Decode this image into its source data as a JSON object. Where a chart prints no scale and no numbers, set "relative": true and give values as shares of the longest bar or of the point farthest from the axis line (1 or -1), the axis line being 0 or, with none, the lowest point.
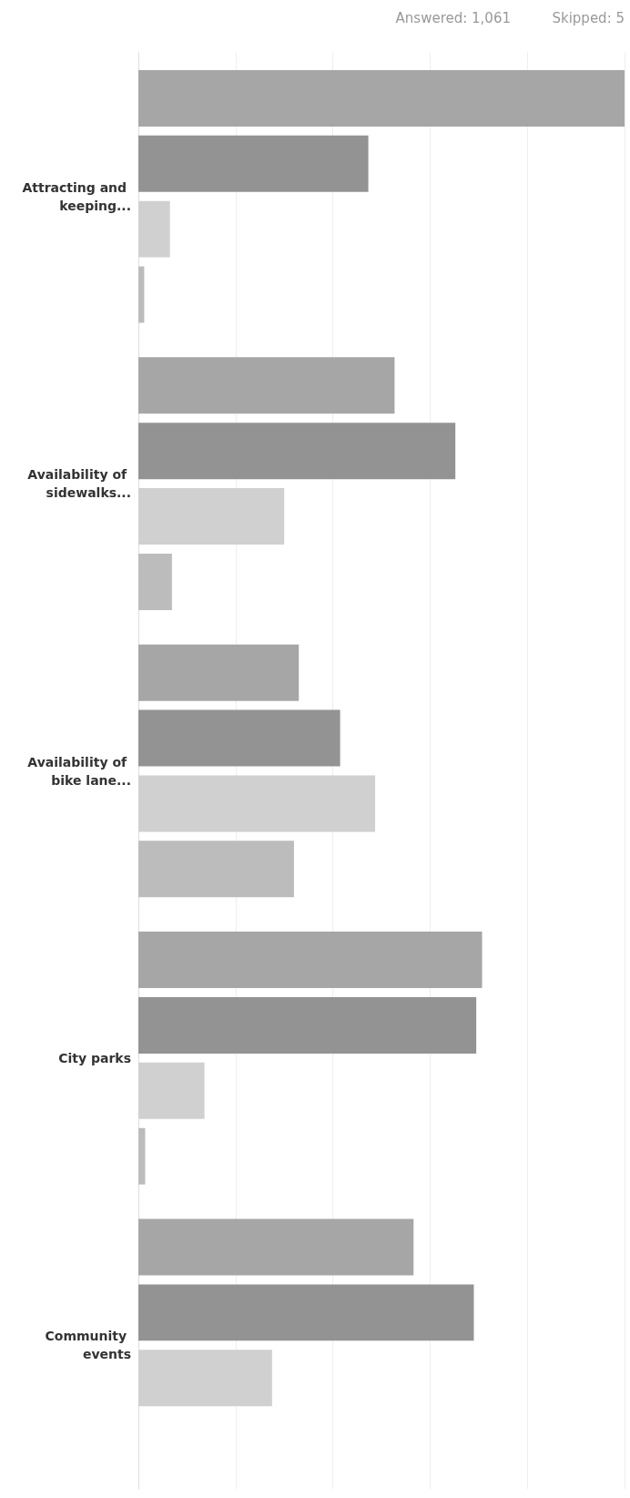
{
  "chart_data": {
    "type": "bar",
    "orientation": "horizontal",
    "relative": true,
    "grid": "x",
    "annotations": [
      "Answered: 1,061",
      "Skipped: 5"
    ],
    "categories": [
      "Attracting and keeping...",
      "Availability of sidewalks...",
      "Availability of bike lane...",
      "City parks",
      "Community events"
    ],
    "series": [
      {
        "color": "#a6a6a6",
        "values": [
          1,
          0.527,
          0.33,
          0.707,
          0.566
        ]
      },
      {
        "color": "#939393",
        "values": [
          0.473,
          0.652,
          0.415,
          0.695,
          0.69
        ]
      },
      {
        "color": "#d0d0d0",
        "values": [
          0.065,
          0.3,
          0.487,
          0.136,
          0.275
        ]
      },
      {
        "color": "#bcbcbc",
        "values": [
          0.012,
          0.069,
          0.32,
          0.014,
          null
        ]
      }
    ]
  }
}
